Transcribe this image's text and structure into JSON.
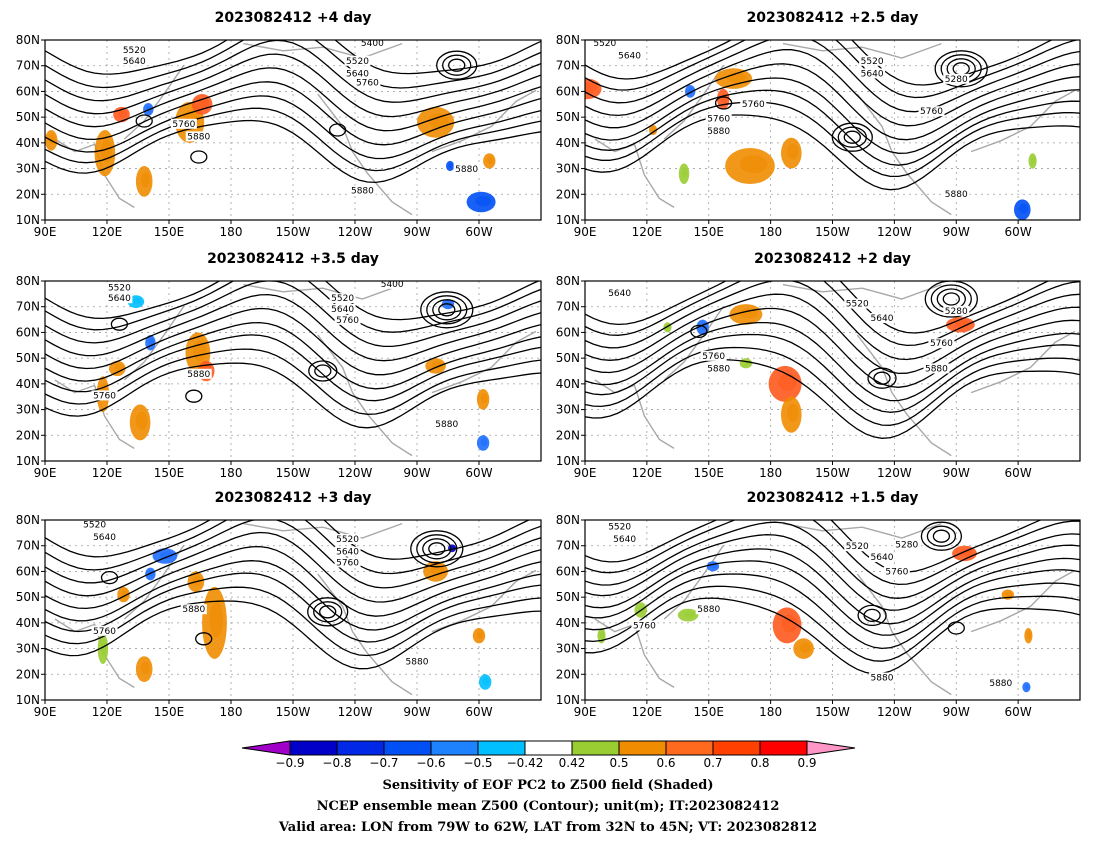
{
  "lat_ticks": [
    "80N",
    "70N",
    "60N",
    "50N",
    "40N",
    "30N",
    "20N",
    "10N"
  ],
  "lon_ticks": [
    "90E",
    "120E",
    "150E",
    "180",
    "150W",
    "120W",
    "90W",
    "60W"
  ],
  "colors": {
    "contour": "#000000",
    "land": "#a8a8a8",
    "grid": "#a0a0a0",
    "bg": "#ffffff"
  },
  "panels": [
    {
      "title": "2023082412 +4 day",
      "contour_labels": [
        "5520",
        "5640",
        "5400",
        "5520",
        "5640",
        "5760",
        "5760",
        "5880",
        "5880",
        "5880"
      ],
      "blobs": [
        {
          "lon": 160,
          "lat": 48,
          "rx": 7,
          "ry": 8,
          "c": "#f08c00"
        },
        {
          "lon": 166,
          "lat": 55,
          "rx": 5,
          "ry": 4,
          "c": "#ff5a1e"
        },
        {
          "lon": 127,
          "lat": 51,
          "rx": 4,
          "ry": 3,
          "c": "#ff5a1e"
        },
        {
          "lon": 138,
          "lat": 25,
          "rx": 4,
          "ry": 6,
          "c": "#f08c00"
        },
        {
          "lon": 93,
          "lat": 41,
          "rx": 3,
          "ry": 4,
          "c": "#f08c00"
        },
        {
          "lon": 119,
          "lat": 36,
          "rx": 5,
          "ry": 9,
          "c": "#f08c00"
        },
        {
          "lon": 81,
          "lat": 48,
          "rx": 9,
          "ry": 6,
          "c": "#f08c00"
        },
        {
          "lon": 55,
          "lat": 33,
          "rx": 3,
          "ry": 3,
          "c": "#f08c00"
        },
        {
          "lon": 140,
          "lat": 53,
          "rx": 2.5,
          "ry": 2.5,
          "c": "#1e6eff"
        },
        {
          "lon": 59,
          "lat": 17,
          "rx": 7,
          "ry": 4,
          "c": "#0050f5"
        },
        {
          "lon": 74,
          "lat": 31,
          "rx": 2,
          "ry": 2,
          "c": "#0050f5"
        }
      ]
    },
    {
      "title": "2023082412 +2.5 day",
      "contour_labels": [
        "5520",
        "5640",
        "5520",
        "5640",
        "5760",
        "5280",
        "5760",
        "5760",
        "5880",
        "5880"
      ],
      "blobs": [
        {
          "lon": 162,
          "lat": 65,
          "rx": 9,
          "ry": 4,
          "c": "#f08c00"
        },
        {
          "lon": 157,
          "lat": 57,
          "rx": 3,
          "ry": 4,
          "c": "#ff5a1e"
        },
        {
          "lon": 170,
          "lat": 31,
          "rx": 12,
          "ry": 7,
          "c": "#f08c00"
        },
        {
          "lon": 190,
          "lat": 36,
          "rx": 5,
          "ry": 6,
          "c": "#f08c00"
        },
        {
          "lon": 91,
          "lat": 61,
          "rx": 7,
          "ry": 4,
          "c": "#ff5a1e"
        },
        {
          "lon": 138,
          "lat": 28,
          "rx": 2.5,
          "ry": 4,
          "c": "#9acd32"
        },
        {
          "lon": 123,
          "lat": 45,
          "rx": 2,
          "ry": 2,
          "c": "#f08c00"
        },
        {
          "lon": 141,
          "lat": 60,
          "rx": 2.5,
          "ry": 2.5,
          "c": "#1e6eff"
        },
        {
          "lon": 58,
          "lat": 14,
          "rx": 4,
          "ry": 4,
          "c": "#0050f5"
        },
        {
          "lon": 53,
          "lat": 33,
          "rx": 2,
          "ry": 3,
          "c": "#9acd32"
        }
      ]
    },
    {
      "title": "2023082412 +3.5 day",
      "contour_labels": [
        "5520",
        "5640",
        "5400",
        "5520",
        "5640",
        "5760",
        "5880",
        "5760",
        "5880"
      ],
      "blobs": [
        {
          "lon": 164,
          "lat": 52,
          "rx": 6,
          "ry": 8,
          "c": "#f08c00"
        },
        {
          "lon": 168,
          "lat": 45,
          "rx": 4,
          "ry": 4,
          "c": "#ff5a1e"
        },
        {
          "lon": 136,
          "lat": 25,
          "rx": 5,
          "ry": 7,
          "c": "#f08c00"
        },
        {
          "lon": 125,
          "lat": 46,
          "rx": 4,
          "ry": 3,
          "c": "#f08c00"
        },
        {
          "lon": 118,
          "lat": 36,
          "rx": 3,
          "ry": 7,
          "c": "#f08c00"
        },
        {
          "lon": 81,
          "lat": 47,
          "rx": 5,
          "ry": 3,
          "c": "#f08c00"
        },
        {
          "lon": 58,
          "lat": 34,
          "rx": 3,
          "ry": 4,
          "c": "#f08c00"
        },
        {
          "lon": 141,
          "lat": 56,
          "rx": 2.5,
          "ry": 3,
          "c": "#1e6eff"
        },
        {
          "lon": 134,
          "lat": 72,
          "rx": 4,
          "ry": 2.5,
          "c": "#00bfff"
        },
        {
          "lon": 75,
          "lat": 71,
          "rx": 3,
          "ry": 2,
          "c": "#1e6eff"
        },
        {
          "lon": 58,
          "lat": 17,
          "rx": 3,
          "ry": 3,
          "c": "#1e6eff"
        }
      ]
    },
    {
      "title": "2023082412 +2 day",
      "contour_labels": [
        "5640",
        "5520",
        "5640",
        "5280",
        "5760",
        "5760",
        "5880",
        "5880"
      ],
      "blobs": [
        {
          "lon": 168,
          "lat": 67,
          "rx": 8,
          "ry": 4,
          "c": "#f08c00"
        },
        {
          "lon": 187,
          "lat": 40,
          "rx": 8,
          "ry": 7,
          "c": "#ff5a1e"
        },
        {
          "lon": 190,
          "lat": 28,
          "rx": 5,
          "ry": 7,
          "c": "#f08c00"
        },
        {
          "lon": 88,
          "lat": 63,
          "rx": 7,
          "ry": 3,
          "c": "#ff5a1e"
        },
        {
          "lon": 130,
          "lat": 62,
          "rx": 2,
          "ry": 2,
          "c": "#9acd32"
        },
        {
          "lon": 147,
          "lat": 62,
          "rx": 3,
          "ry": 3,
          "c": "#1e6eff"
        },
        {
          "lon": 168,
          "lat": 48,
          "rx": 3,
          "ry": 2,
          "c": "#9acd32"
        }
      ]
    },
    {
      "title": "2023082412 +3 day",
      "contour_labels": [
        "5520",
        "5640",
        "5520",
        "5640",
        "5760",
        "5880",
        "5760",
        "5880"
      ],
      "blobs": [
        {
          "lon": 172,
          "lat": 40,
          "rx": 6,
          "ry": 14,
          "c": "#f08c00"
        },
        {
          "lon": 163,
          "lat": 56,
          "rx": 4,
          "ry": 4,
          "c": "#f08c00"
        },
        {
          "lon": 138,
          "lat": 22,
          "rx": 4,
          "ry": 5,
          "c": "#f08c00"
        },
        {
          "lon": 128,
          "lat": 51,
          "rx": 3,
          "ry": 3,
          "c": "#f08c00"
        },
        {
          "lon": 118,
          "lat": 30,
          "rx": 2.5,
          "ry": 6,
          "c": "#9acd32"
        },
        {
          "lon": 81,
          "lat": 60,
          "rx": 6,
          "ry": 4,
          "c": "#f08c00"
        },
        {
          "lon": 60,
          "lat": 35,
          "rx": 3,
          "ry": 3,
          "c": "#f08c00"
        },
        {
          "lon": 148,
          "lat": 66,
          "rx": 6,
          "ry": 3,
          "c": "#1e6eff"
        },
        {
          "lon": 141,
          "lat": 59,
          "rx": 2.5,
          "ry": 2.5,
          "c": "#1e6eff"
        },
        {
          "lon": 73,
          "lat": 69,
          "rx": 2,
          "ry": 1.5,
          "c": "#0000c8"
        },
        {
          "lon": 57,
          "lat": 17,
          "rx": 3,
          "ry": 3,
          "c": "#00bfff"
        }
      ]
    },
    {
      "title": "2023082412 +1.5 day",
      "contour_labels": [
        "5520",
        "5640",
        "5520",
        "5640",
        "5280",
        "5760",
        "5880",
        "5760",
        "5880",
        "5880"
      ],
      "blobs": [
        {
          "lon": 188,
          "lat": 39,
          "rx": 7,
          "ry": 7,
          "c": "#ff5a1e"
        },
        {
          "lon": 196,
          "lat": 30,
          "rx": 5,
          "ry": 4,
          "c": "#f08c00"
        },
        {
          "lon": 86,
          "lat": 67,
          "rx": 6,
          "ry": 3,
          "c": "#ff5a1e"
        },
        {
          "lon": 140,
          "lat": 43,
          "rx": 5,
          "ry": 2.5,
          "c": "#9acd32"
        },
        {
          "lon": 117,
          "lat": 45,
          "rx": 3,
          "ry": 3,
          "c": "#9acd32"
        },
        {
          "lon": 65,
          "lat": 51,
          "rx": 3,
          "ry": 2,
          "c": "#f08c00"
        },
        {
          "lon": 152,
          "lat": 62,
          "rx": 3,
          "ry": 2,
          "c": "#1e6eff"
        },
        {
          "lon": 98,
          "lat": 35,
          "rx": 2,
          "ry": 3,
          "c": "#9acd32"
        },
        {
          "lon": 55,
          "lat": 35,
          "rx": 2,
          "ry": 3,
          "c": "#f08c00"
        },
        {
          "lon": 56,
          "lat": 15,
          "rx": 2,
          "ry": 2,
          "c": "#1e6eff"
        }
      ]
    }
  ],
  "colorbar": {
    "labels": [
      "−0.9",
      "−0.8",
      "−0.7",
      "−0.6",
      "−0.5",
      "−0.42",
      "0.42",
      "0.5",
      "0.6",
      "0.7",
      "0.8",
      "0.9"
    ],
    "colors": [
      "#a000c8",
      "#0000c8",
      "#0028e6",
      "#0050f5",
      "#1e82ff",
      "#00bfff",
      "#ffffff",
      "#9acd32",
      "#f08c00",
      "#ff6a1e",
      "#ff4000",
      "#ff0000",
      "#ff96c8"
    ]
  },
  "caption": [
    "Sensitivity of EOF PC2 to Z500 field (Shaded)",
    "NCEP ensemble mean Z500 (Contour); unit(m); IT:2023082412",
    "Valid area: LON from 79W to 62W, LAT from 32N to 45N; VT: 2023082812"
  ]
}
